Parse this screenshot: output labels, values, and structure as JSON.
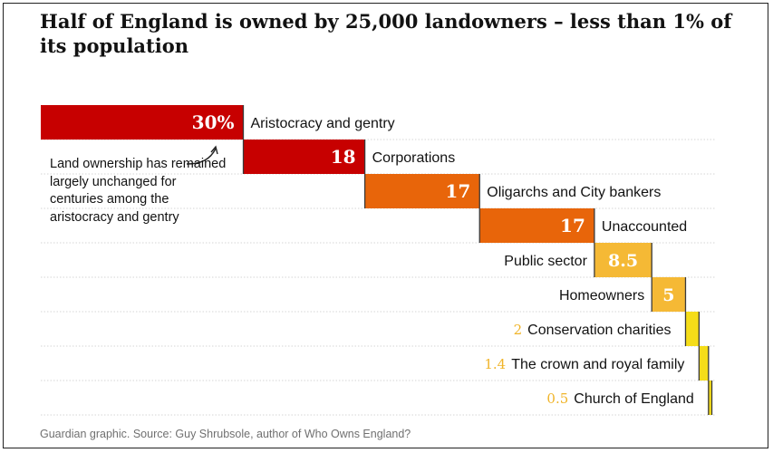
{
  "title": "Half of England is owned by 25,000 landowners – less than 1% of its population",
  "annotation": "Land ownership has remained largely unchanged for centuries among the aristocracy and gentry",
  "footer": "Guardian graphic. Source: Guy Shrubsole, author of Who Owns England?",
  "chart_data": {
    "type": "bar",
    "subtype": "cascade (waterfall) of shares summing to 100%",
    "unit": "%",
    "categories": [
      "Aristocracy and gentry",
      "Corporations",
      "Oligarchs and City bankers",
      "Unaccounted",
      "Public sector",
      "Homeowners",
      "Conservation charities",
      "The crown and royal family",
      "Church of England"
    ],
    "values": [
      30,
      18,
      17,
      17,
      8.5,
      5,
      2,
      1.4,
      0.5
    ],
    "value_labels": [
      "30%",
      "18",
      "17",
      "17",
      "8.5",
      "5",
      "2",
      "1.4",
      "0.5"
    ],
    "colors": [
      "#c70000",
      "#c70000",
      "#e8650a",
      "#e8650a",
      "#f5b935",
      "#f5b935",
      "#f5dd19",
      "#f5dd19",
      "#f5dd19"
    ],
    "xlim": [
      0,
      100
    ],
    "grid": true,
    "legend": "none"
  }
}
